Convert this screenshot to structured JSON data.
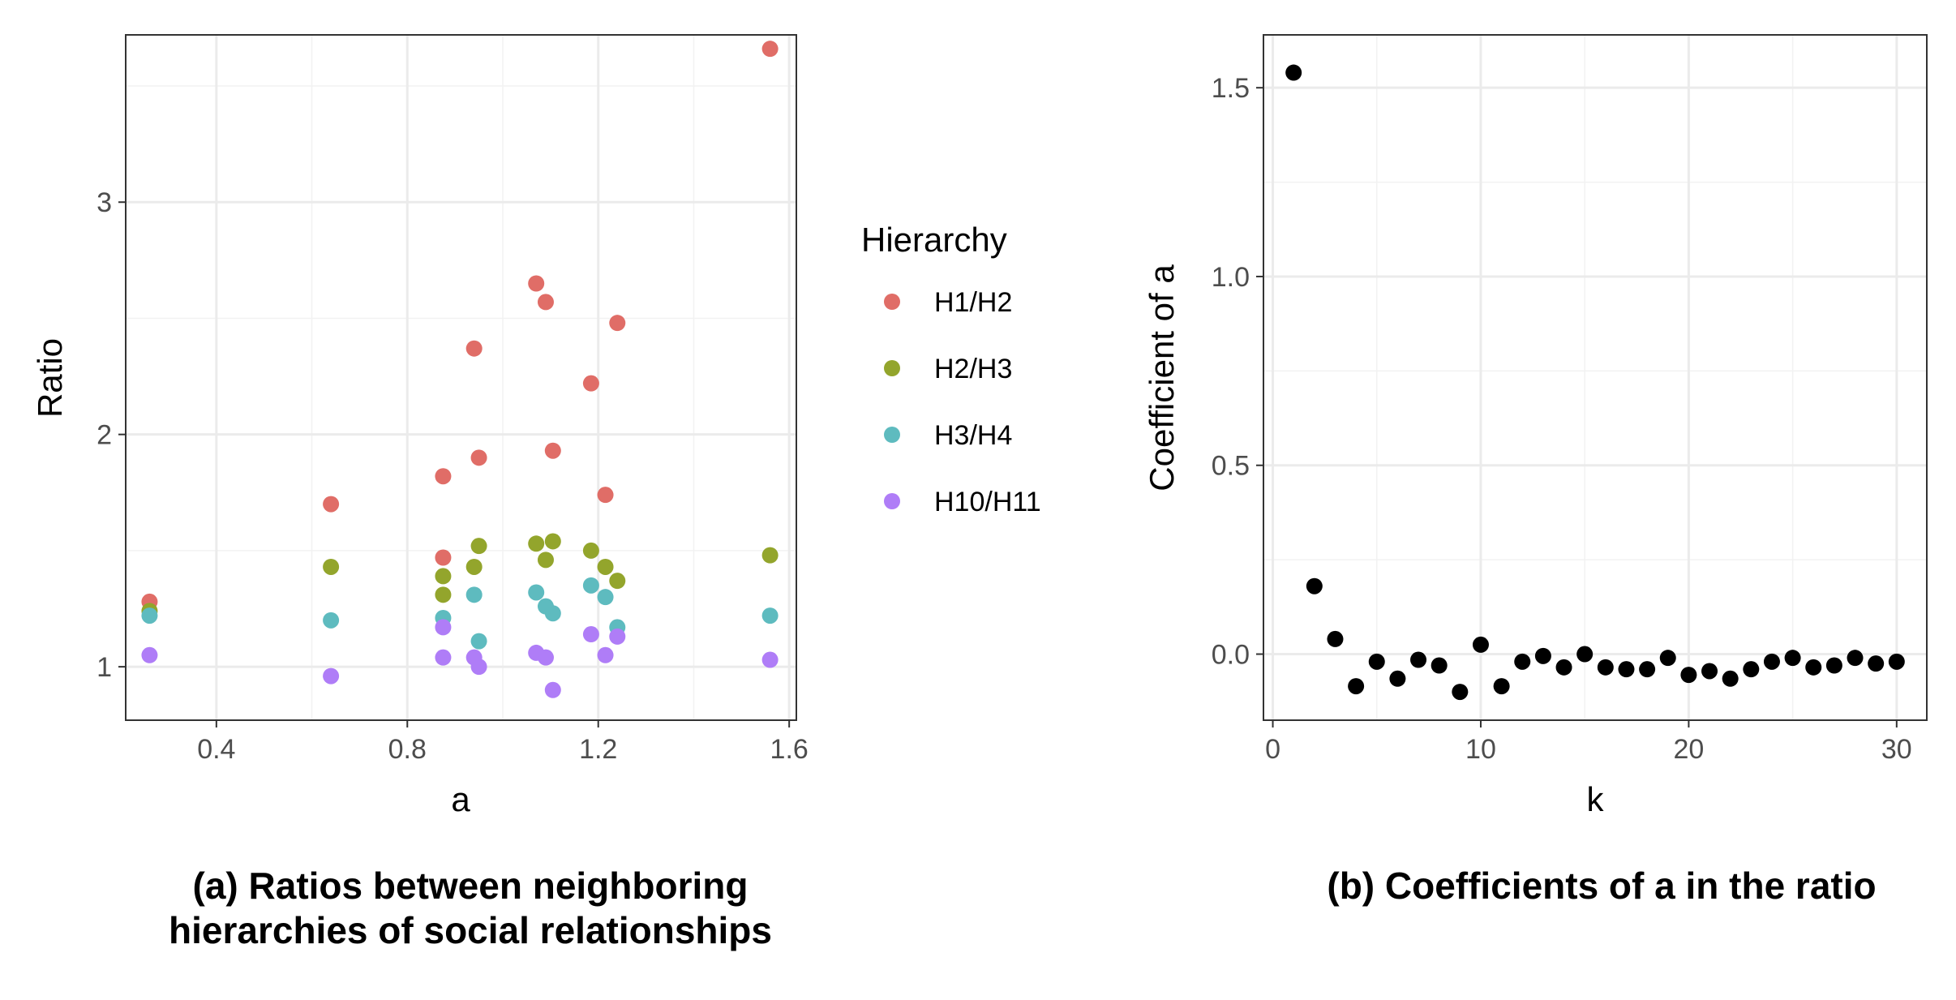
{
  "chart_data": [
    {
      "type": "scatter",
      "caption_line1": "(a) Ratios between neighboring",
      "caption_line2": "hierarchies of social relationships",
      "xlabel": "a",
      "ylabel": "Ratio",
      "xlim": [
        0.21,
        1.615
      ],
      "ylim": [
        0.77,
        3.72
      ],
      "xticks": [
        0.4,
        0.8,
        1.2,
        1.6
      ],
      "xtick_labels": [
        "0.4",
        "0.8",
        "1.2",
        "1.6"
      ],
      "yticks": [
        1,
        2,
        3
      ],
      "ytick_labels": [
        "1",
        "2",
        "3"
      ],
      "grid": true,
      "legend": {
        "title": "Hierarchy",
        "position": "right"
      },
      "series": [
        {
          "name": "H1/H2",
          "color": "#E06D67",
          "points": [
            [
              0.26,
              1.28
            ],
            [
              0.64,
              1.7
            ],
            [
              0.875,
              1.82
            ],
            [
              0.875,
              1.47
            ],
            [
              0.94,
              2.37
            ],
            [
              0.95,
              1.9
            ],
            [
              1.07,
              2.65
            ],
            [
              1.09,
              2.57
            ],
            [
              1.105,
              1.93
            ],
            [
              1.185,
              2.22
            ],
            [
              1.215,
              1.74
            ],
            [
              1.24,
              2.48
            ],
            [
              1.56,
              3.66
            ]
          ]
        },
        {
          "name": "H2/H3",
          "color": "#93A52C",
          "points": [
            [
              0.26,
              1.24
            ],
            [
              0.64,
              1.43
            ],
            [
              0.875,
              1.39
            ],
            [
              0.875,
              1.31
            ],
            [
              0.94,
              1.43
            ],
            [
              0.95,
              1.52
            ],
            [
              1.07,
              1.53
            ],
            [
              1.09,
              1.46
            ],
            [
              1.105,
              1.54
            ],
            [
              1.185,
              1.5
            ],
            [
              1.215,
              1.43
            ],
            [
              1.24,
              1.37
            ],
            [
              1.56,
              1.48
            ]
          ]
        },
        {
          "name": "H3/H4",
          "color": "#5EBBBF",
          "points": [
            [
              0.26,
              1.22
            ],
            [
              0.64,
              1.2
            ],
            [
              0.875,
              1.21
            ],
            [
              0.94,
              1.31
            ],
            [
              0.95,
              1.11
            ],
            [
              1.07,
              1.32
            ],
            [
              1.09,
              1.26
            ],
            [
              1.105,
              1.23
            ],
            [
              1.185,
              1.35
            ],
            [
              1.215,
              1.3
            ],
            [
              1.24,
              1.17
            ],
            [
              1.56,
              1.22
            ]
          ]
        },
        {
          "name": "H10/H11",
          "color": "#AF7DF7",
          "points": [
            [
              0.26,
              1.05
            ],
            [
              0.64,
              0.96
            ],
            [
              0.875,
              1.17
            ],
            [
              0.875,
              1.04
            ],
            [
              0.94,
              1.04
            ],
            [
              0.95,
              1.0
            ],
            [
              1.07,
              1.06
            ],
            [
              1.09,
              1.04
            ],
            [
              1.105,
              0.9
            ],
            [
              1.185,
              1.14
            ],
            [
              1.215,
              1.05
            ],
            [
              1.24,
              1.13
            ],
            [
              1.56,
              1.03
            ]
          ]
        }
      ]
    },
    {
      "type": "scatter",
      "caption": "(b) Coefficients of a in the ratio",
      "xlabel": "k",
      "ylabel": "Coefficient of a",
      "xlim": [
        -0.45,
        31.45
      ],
      "ylim": [
        -0.175,
        1.64
      ],
      "xticks": [
        0,
        10,
        20,
        30
      ],
      "xtick_labels": [
        "0",
        "10",
        "20",
        "30"
      ],
      "yticks": [
        0.0,
        0.5,
        1.0,
        1.5
      ],
      "ytick_labels": [
        "0.0",
        "0.5",
        "1.0",
        "1.5"
      ],
      "grid": true,
      "color": "#000000",
      "x": [
        1,
        2,
        3,
        4,
        5,
        6,
        7,
        8,
        9,
        10,
        11,
        12,
        13,
        14,
        15,
        16,
        17,
        18,
        19,
        20,
        21,
        22,
        23,
        24,
        25,
        26,
        27,
        28,
        29,
        30
      ],
      "y": [
        1.54,
        0.18,
        0.04,
        -0.085,
        -0.02,
        -0.065,
        -0.015,
        -0.03,
        -0.1,
        0.025,
        -0.085,
        -0.02,
        -0.005,
        -0.035,
        0.0,
        -0.035,
        -0.04,
        -0.04,
        -0.01,
        -0.055,
        -0.045,
        -0.065,
        -0.04,
        -0.02,
        -0.01,
        -0.035,
        -0.03,
        -0.01,
        -0.025,
        -0.02
      ]
    }
  ]
}
